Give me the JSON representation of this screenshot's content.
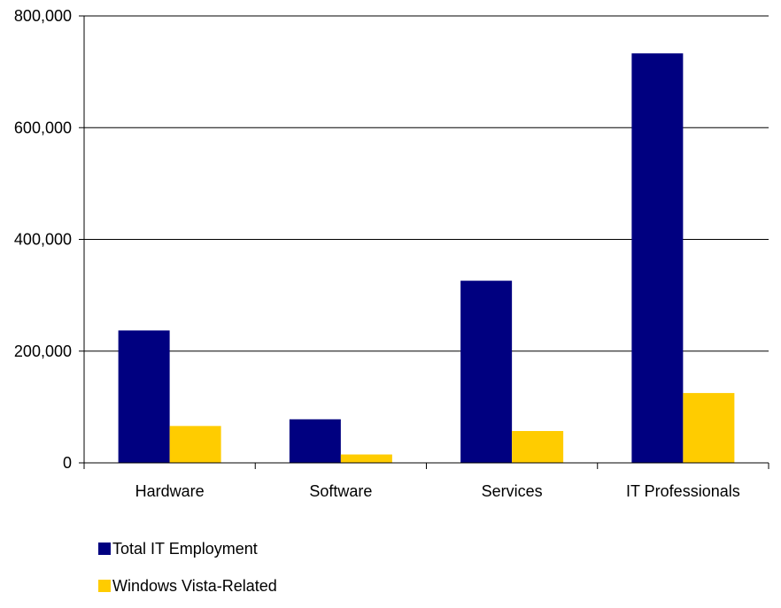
{
  "chart_data": {
    "type": "bar",
    "categories": [
      "Hardware",
      "Software",
      "Services",
      "IT Professionals"
    ],
    "series": [
      {
        "name": "Total IT Employment",
        "color": "#000080",
        "values": [
          237000,
          78000,
          326000,
          733000
        ]
      },
      {
        "name": "Windows Vista-Related",
        "color": "#FFCC00",
        "values": [
          66000,
          15000,
          57000,
          125000
        ]
      }
    ],
    "ylim": [
      0,
      800000
    ],
    "yticks": [
      0,
      200000,
      400000,
      600000,
      800000
    ],
    "ytick_labels": [
      "0",
      "200,000",
      "400,000",
      "600,000",
      "800,000"
    ],
    "grid": true,
    "legend_position": "bottom-left"
  }
}
